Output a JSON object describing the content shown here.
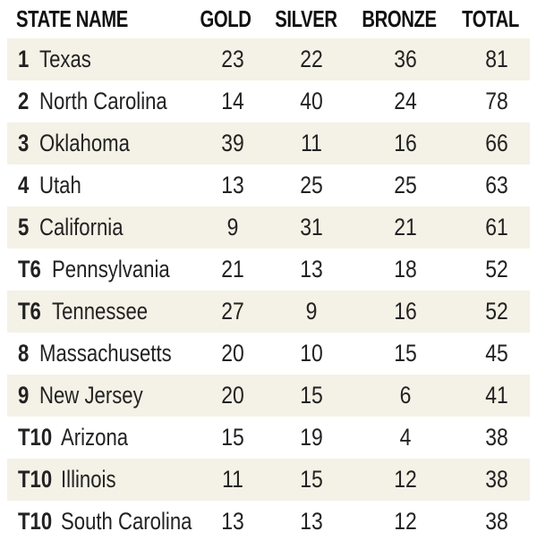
{
  "headers": {
    "state": "STATE NAME",
    "gold": "GOLD",
    "silver": "SILVER",
    "bronze": "BRONZE",
    "total": "TOTAL"
  },
  "rows": [
    {
      "rank": "1",
      "state": "Texas",
      "gold": "23",
      "silver": "22",
      "bronze": "36",
      "total": "81"
    },
    {
      "rank": "2",
      "state": "North Carolina",
      "gold": "14",
      "silver": "40",
      "bronze": "24",
      "total": "78"
    },
    {
      "rank": "3",
      "state": "Oklahoma",
      "gold": "39",
      "silver": "11",
      "bronze": "16",
      "total": "66"
    },
    {
      "rank": "4",
      "state": "Utah",
      "gold": "13",
      "silver": "25",
      "bronze": "25",
      "total": "63"
    },
    {
      "rank": "5",
      "state": "California",
      "gold": "9",
      "silver": "31",
      "bronze": "21",
      "total": "61"
    },
    {
      "rank": "T6",
      "state": "Pennsylvania",
      "gold": "21",
      "silver": "13",
      "bronze": "18",
      "total": "52"
    },
    {
      "rank": "T6",
      "state": "Tennessee",
      "gold": "27",
      "silver": "9",
      "bronze": "16",
      "total": "52"
    },
    {
      "rank": "8",
      "state": "Massachusetts",
      "gold": "20",
      "silver": "10",
      "bronze": "15",
      "total": "45"
    },
    {
      "rank": "9",
      "state": "New Jersey",
      "gold": "20",
      "silver": "15",
      "bronze": "6",
      "total": "41"
    },
    {
      "rank": "T10",
      "state": "Arizona",
      "gold": "15",
      "silver": "19",
      "bronze": "4",
      "total": "38"
    },
    {
      "rank": "T10",
      "state": "Illinois",
      "gold": "11",
      "silver": "15",
      "bronze": "12",
      "total": "38"
    },
    {
      "rank": "T10",
      "state": "South Carolina",
      "gold": "13",
      "silver": "13",
      "bronze": "12",
      "total": "38"
    }
  ],
  "colors": {
    "row_shade": "#f4f1e6",
    "text": "#222222"
  }
}
